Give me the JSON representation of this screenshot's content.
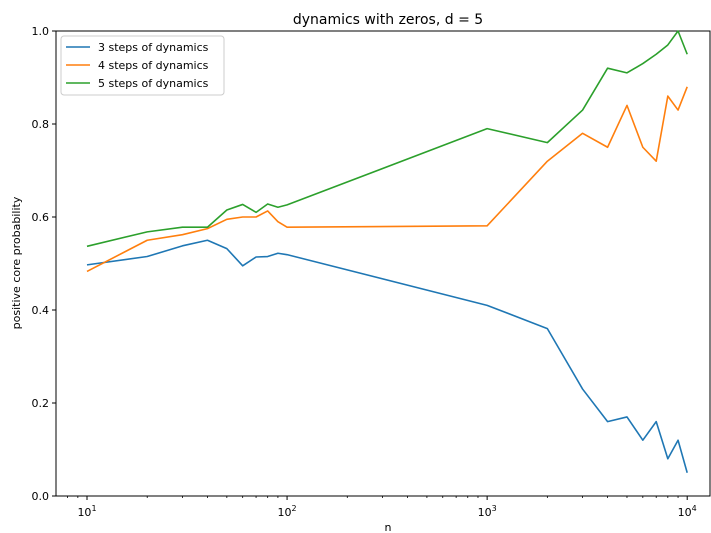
{
  "chart_data": {
    "type": "line",
    "title": "dynamics with zeros, d = 5",
    "xlabel": "n",
    "ylabel": "positive core probability",
    "xscale": "log",
    "xlim": [
      7,
      13000
    ],
    "ylim": [
      0.0,
      1.0
    ],
    "xticks": [
      10,
      100,
      1000,
      10000
    ],
    "xtick_labels": [
      {
        "base": "10",
        "exp": "1"
      },
      {
        "base": "10",
        "exp": "2"
      },
      {
        "base": "10",
        "exp": "3"
      },
      {
        "base": "10",
        "exp": "4"
      }
    ],
    "yticks": [
      0.0,
      0.2,
      0.4,
      0.6,
      0.8,
      1.0
    ],
    "ytick_labels": [
      "0.0",
      "0.2",
      "0.4",
      "0.6",
      "0.8",
      "1.0"
    ],
    "grid": false,
    "legend_position": "top-left",
    "x": [
      10,
      20,
      30,
      40,
      50,
      60,
      70,
      80,
      90,
      100,
      1000,
      2000,
      3000,
      4000,
      5000,
      6000,
      7000,
      8000,
      9000,
      10000
    ],
    "series": [
      {
        "name": "3 steps of dynamics",
        "color": "#1f77b4",
        "values": [
          0.497,
          0.515,
          0.538,
          0.55,
          0.532,
          0.495,
          0.514,
          0.515,
          0.522,
          0.519,
          0.41,
          0.36,
          0.23,
          0.16,
          0.17,
          0.12,
          0.16,
          0.08,
          0.12,
          0.05
        ]
      },
      {
        "name": "4 steps of dynamics",
        "color": "#ff7f0e",
        "values": [
          0.483,
          0.55,
          0.562,
          0.575,
          0.595,
          0.6,
          0.6,
          0.613,
          0.59,
          0.578,
          0.581,
          0.72,
          0.78,
          0.75,
          0.84,
          0.75,
          0.72,
          0.86,
          0.83,
          0.88
        ]
      },
      {
        "name": "5 steps of dynamics",
        "color": "#2ca02c",
        "values": [
          0.537,
          0.568,
          0.578,
          0.578,
          0.615,
          0.627,
          0.61,
          0.628,
          0.621,
          0.626,
          0.79,
          0.76,
          0.83,
          0.92,
          0.91,
          0.93,
          0.95,
          0.97,
          1.0,
          0.95
        ]
      }
    ]
  }
}
